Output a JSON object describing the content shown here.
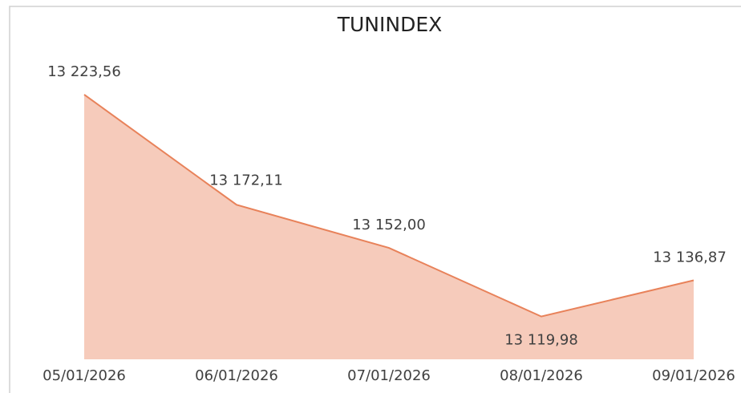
{
  "chart_data": {
    "type": "area",
    "title": "TUNINDEX",
    "categories": [
      "05/01/2026",
      "06/01/2026",
      "07/01/2026",
      "08/01/2026",
      "09/01/2026"
    ],
    "values": [
      13223.56,
      13172.11,
      13152.0,
      13119.98,
      13136.87
    ],
    "value_labels": [
      "13 223,56",
      "13 172,11",
      "13 152,00",
      "13 119,98",
      "13 136,87"
    ],
    "color": "#e8825a",
    "fill": "#f6cbbb",
    "ylim": [
      13100,
      13240
    ]
  }
}
